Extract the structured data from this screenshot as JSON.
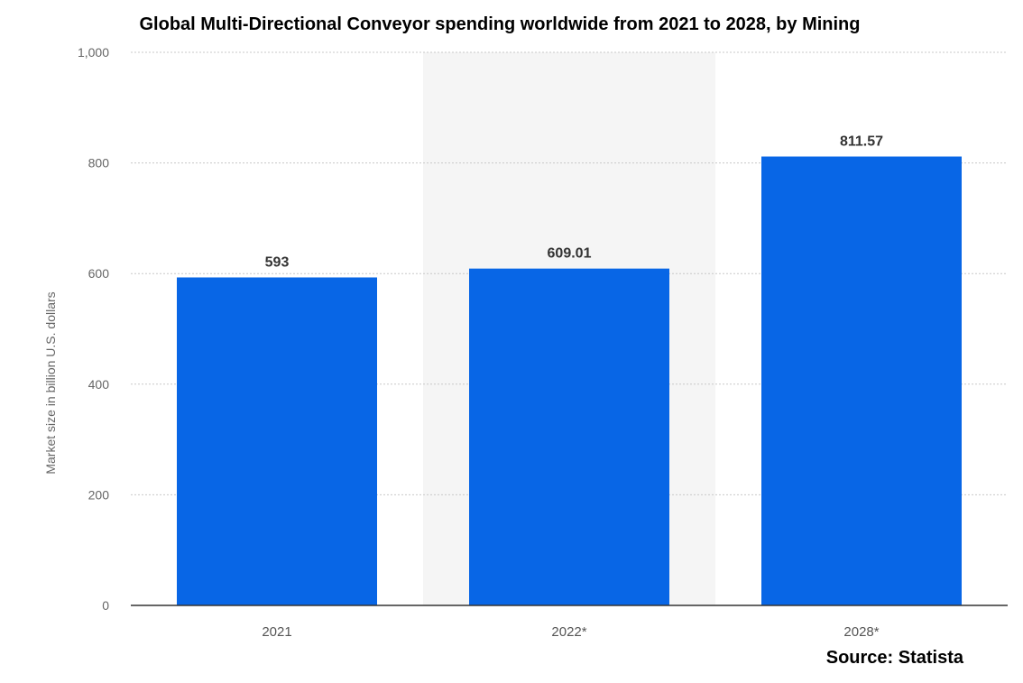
{
  "chart_data": {
    "type": "bar",
    "title": "Global Multi-Directional Conveyor spending worldwide from 2021 to 2028, by Mining",
    "categories": [
      "2021",
      "2022*",
      "2028*"
    ],
    "values": [
      593,
      609.01,
      811.57
    ],
    "value_labels": [
      "593",
      "609.01",
      "811.57"
    ],
    "xlabel": "",
    "ylabel": "Market size in billion U.S. dollars",
    "ylim": [
      0,
      1000
    ],
    "yticks": [
      0,
      200,
      400,
      600,
      800,
      1000
    ],
    "ytick_labels": [
      "0",
      "200",
      "400",
      "600",
      "800",
      "1,000"
    ],
    "highlighted_category": "2022*",
    "grid": true,
    "bar_color": "#0866e6",
    "source": "Source: Statista"
  }
}
